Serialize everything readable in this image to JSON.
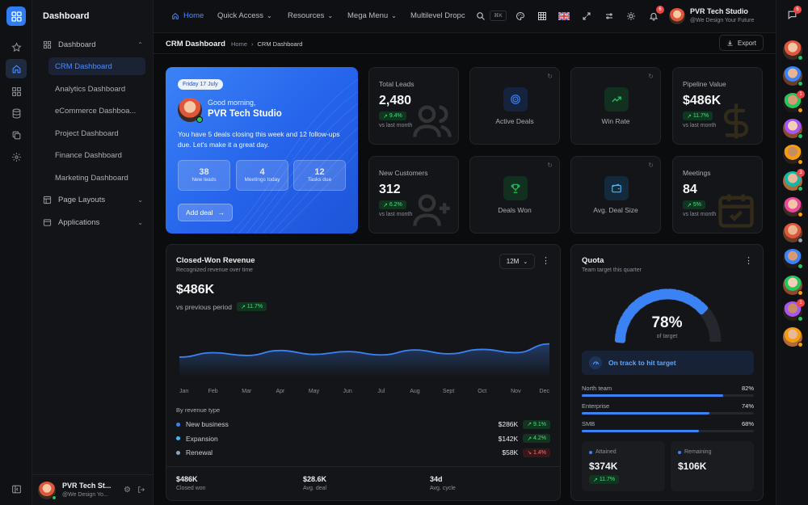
{
  "sidebar": {
    "title": "Dashboard",
    "groups": [
      {
        "label": "Dashboard"
      },
      {
        "label": "Page Layouts"
      },
      {
        "label": "Applications"
      }
    ],
    "items": [
      {
        "label": "CRM Dashboard"
      },
      {
        "label": "Analytics Dashboard"
      },
      {
        "label": "eCommerce Dashboa..."
      },
      {
        "label": "Project Dashboard"
      },
      {
        "label": "Finance Dashboard"
      },
      {
        "label": "Marketing Dashboard"
      }
    ],
    "user": {
      "name": "PVR Tech St...",
      "handle": "@We Design Yo..."
    }
  },
  "topbar": {
    "nav": [
      {
        "label": "Home"
      },
      {
        "label": "Quick Access"
      },
      {
        "label": "Resources"
      },
      {
        "label": "Mega Menu"
      },
      {
        "label": "Multilevel Dropc"
      }
    ],
    "kbd": "⌘K",
    "notif_count": "6",
    "user": {
      "name": "PVR Tech Studio",
      "handle": "@We Design Your Future"
    },
    "chat_count": "6"
  },
  "page": {
    "title": "CRM Dashboard",
    "breadcrumb": [
      "Home",
      "CRM Dashboard"
    ],
    "export_label": "Export"
  },
  "hero": {
    "date": "Friday 17 July",
    "greeting": "Good morning,",
    "name": "PVR Tech Studio",
    "message": "You have 5 deals closing this week and 12 follow-ups due. Let's make it a great day.",
    "minis": [
      {
        "value": "38",
        "label": "New leads"
      },
      {
        "value": "4",
        "label": "Meetings today"
      },
      {
        "value": "12",
        "label": "Tasks due"
      }
    ],
    "cta": "Add deal"
  },
  "stats": [
    {
      "label": "Total Leads",
      "value": "2,480",
      "change": "9.4%",
      "sub": "vs last month"
    },
    {
      "label": "Pipeline Value",
      "value": "$486K",
      "change": "11.7%",
      "sub": "vs last month"
    },
    {
      "label": "New Customers",
      "value": "312",
      "change": "6.2%",
      "sub": "vs last month"
    },
    {
      "label": "Meetings",
      "value": "84",
      "change": "5%",
      "sub": "vs last month"
    }
  ],
  "icon_cards": [
    {
      "label": "Active Deals",
      "icon": "target-icon",
      "color": "#3b82f6"
    },
    {
      "label": "Win Rate",
      "icon": "trend-up-icon",
      "color": "#22c55e"
    },
    {
      "label": "Deals Won",
      "icon": "trophy-icon",
      "color": "#22c55e"
    },
    {
      "label": "Avg. Deal Size",
      "icon": "wallet-icon",
      "color": "#38bdf8"
    }
  ],
  "revenue": {
    "title": "Closed-Won Revenue",
    "subtitle": "Recognized revenue over time",
    "range": "12M",
    "value": "$486K",
    "compare": "vs previous period",
    "change": "11.7%",
    "by_type_label": "By revenue type",
    "types": [
      {
        "name": "New business",
        "value": "$286K",
        "change": "9.1%",
        "dir": "up",
        "color": "#3b82f6"
      },
      {
        "name": "Expansion",
        "value": "$142K",
        "change": "4.2%",
        "dir": "up",
        "color": "#38bdf8"
      },
      {
        "name": "Renewal",
        "value": "$58K",
        "change": "1.4%",
        "dir": "down",
        "color": "#94a3b8"
      }
    ],
    "footer": [
      {
        "value": "$486K",
        "label": "Closed won"
      },
      {
        "value": "$28.6K",
        "label": "Avg. deal"
      },
      {
        "value": "34d",
        "label": "Avg. cycle"
      }
    ]
  },
  "chart_data": {
    "type": "area",
    "x": [
      "Jan",
      "Feb",
      "Mar",
      "Apr",
      "May",
      "Jun",
      "Jul",
      "Aug",
      "Sept",
      "Oct",
      "Nov",
      "Dec"
    ],
    "series": [
      {
        "values": [
          28,
          36,
          31,
          40,
          33,
          38,
          32,
          41,
          34,
          42,
          36,
          52
        ]
      }
    ],
    "ylim": [
      0,
      100
    ],
    "grid": false,
    "xlabel": "",
    "ylabel": "",
    "title": ""
  },
  "quota": {
    "title": "Quota",
    "subtitle": "Team target this quarter",
    "percent": 78,
    "percent_label": "78%",
    "of_target": "of target",
    "status": "On track to hit target",
    "teams": [
      {
        "name": "North team",
        "value": 82,
        "label": "82%"
      },
      {
        "name": "Enterprise",
        "value": 74,
        "label": "74%"
      },
      {
        "name": "SMB",
        "value": 68,
        "label": "68%"
      }
    ],
    "attained_label": "Attained",
    "attained_value": "$374K",
    "attained_change": "11.7%",
    "remaining_label": "Remaining",
    "remaining_value": "$106K"
  },
  "people": [
    {
      "status": "#22c55e",
      "badge": ""
    },
    {
      "status": "#22c55e",
      "badge": ""
    },
    {
      "status": "#f59e0b",
      "badge": "1"
    },
    {
      "status": "#22c55e",
      "badge": ""
    },
    {
      "status": "#f59e0b",
      "badge": ""
    },
    {
      "status": "#22c55e",
      "badge": "3"
    },
    {
      "status": "#f59e0b",
      "badge": ""
    },
    {
      "status": "#9ca3af",
      "badge": ""
    },
    {
      "status": "#22c55e",
      "badge": ""
    },
    {
      "status": "#f59e0b",
      "badge": ""
    },
    {
      "status": "#22c55e",
      "badge": "1"
    },
    {
      "status": "#f59e0b",
      "badge": ""
    }
  ]
}
